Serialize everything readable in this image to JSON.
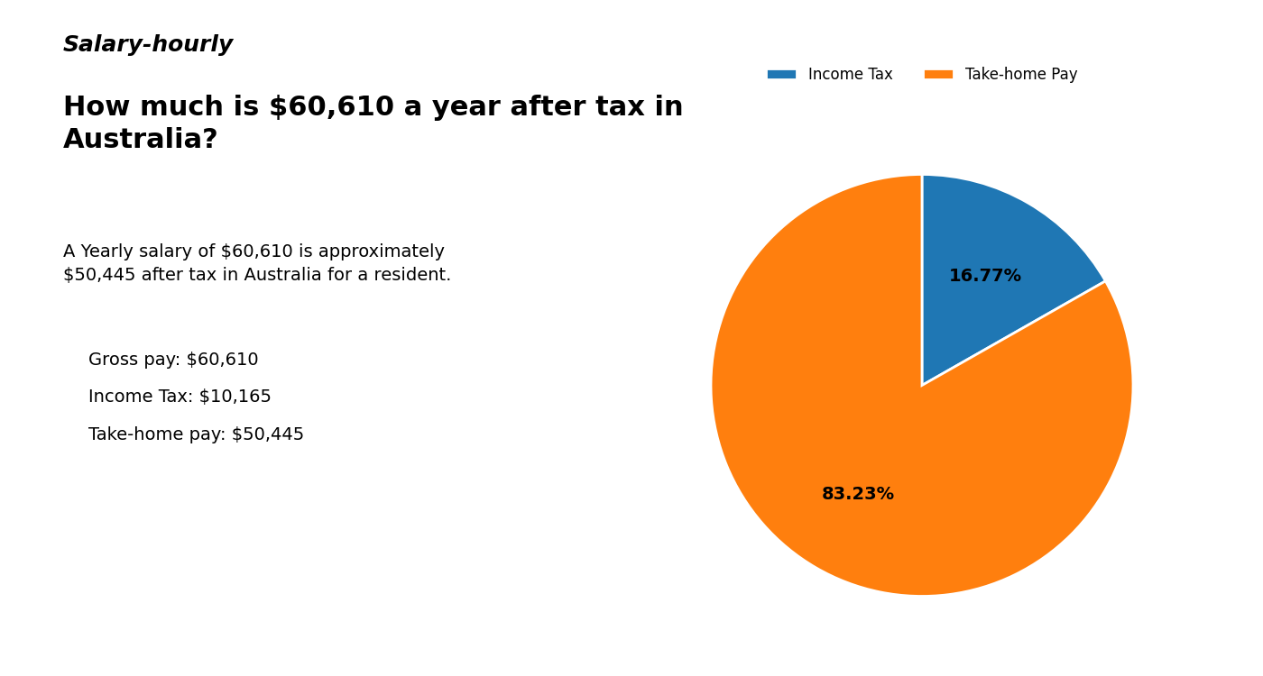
{
  "chart_data": {
    "type": "pie",
    "title": "How much is $60,610 a year after tax in\nAustralia?",
    "annotations": [
      "Salary-hourly",
      "A Yearly salary of $60,610 is approximately $50,445 after tax in Australia for a resident.",
      "Gross pay: $60,610",
      "Income Tax: $10,165",
      "Take-home pay: $50,445"
    ],
    "categories": [
      "Income Tax",
      "Take-home Pay"
    ],
    "values": [
      16.77,
      83.23
    ],
    "value_labels": [
      "16.77%",
      "83.23%"
    ],
    "data_labels": true,
    "legend": "upper center"
  }
}
